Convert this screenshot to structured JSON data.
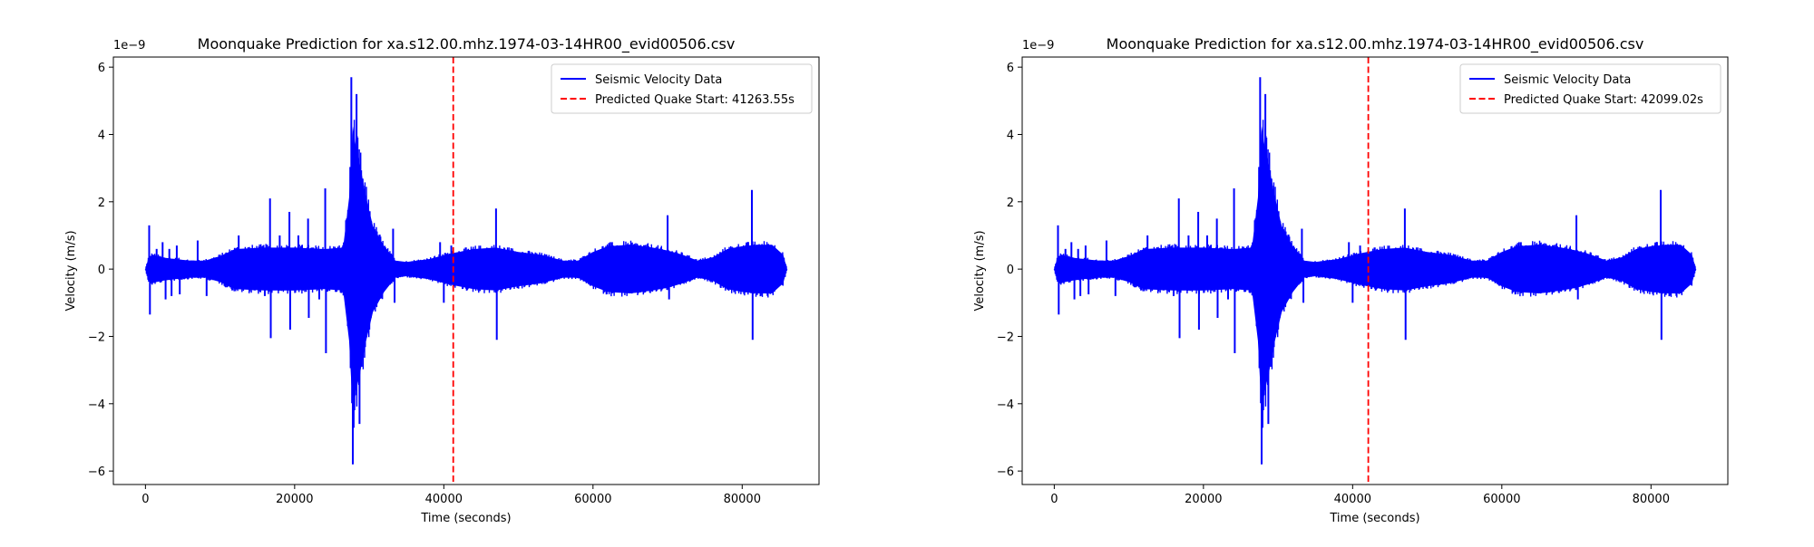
{
  "charts": [
    {
      "title": "Moonquake Prediction for xa.s12.00.mhz.1974-03-14HR00_evid00506.csv",
      "xlabel": "Time (seconds)",
      "ylabel": "Velocity (m/s)",
      "offset_label": "1e−9",
      "legend_series": "Seismic Velocity Data",
      "legend_prediction": "Predicted Quake Start: 41263.55s"
    },
    {
      "title": "Moonquake Prediction for xa.s12.00.mhz.1974-03-14HR00_evid00506.csv",
      "xlabel": "Time (seconds)",
      "ylabel": "Velocity (m/s)",
      "offset_label": "1e−9",
      "legend_series": "Seismic Velocity Data",
      "legend_prediction": "Predicted Quake Start: 42099.02s"
    }
  ],
  "chart_data": [
    {
      "type": "line",
      "title": "Moonquake Prediction for xa.s12.00.mhz.1974-03-14HR00_evid00506.csv",
      "xlabel": "Time (seconds)",
      "ylabel": "Velocity (m/s)",
      "y_scale_factor": 1e-09,
      "xlim": [
        -4300,
        90300
      ],
      "ylim": [
        -6.4,
        6.3
      ],
      "x_ticks": [
        0,
        20000,
        40000,
        60000,
        80000
      ],
      "y_ticks": [
        -6,
        -4,
        -2,
        0,
        2,
        4,
        6
      ],
      "legend_position": "upper right",
      "grid": false,
      "series": [
        {
          "name": "Seismic Velocity Data",
          "color": "#0000ff",
          "style": "solid",
          "envelope": {
            "x": [
              0,
              400,
              900,
              1500,
              2500,
              4000,
              6000,
              8000,
              10000,
              12000,
              16000,
              20000,
              24000,
              26500,
              27300,
              27800,
              28200,
              28800,
              29500,
              30500,
              32000,
              33500,
              35000,
              38000,
              41000,
              44000,
              47000,
              50000,
              53000,
              56000,
              58000,
              60000,
              62000,
              65000,
              68000,
              70000,
              72000,
              74000,
              76000,
              78000,
              80000,
              82000,
              84000,
              85500,
              86000
            ],
            "upper": [
              0,
              0.4,
              0.5,
              0.45,
              0.4,
              0.35,
              0.3,
              0.3,
              0.45,
              0.7,
              0.75,
              0.75,
              0.7,
              0.75,
              2.5,
              5.0,
              4.3,
              3.6,
              2.6,
              1.5,
              0.8,
              0.3,
              0.25,
              0.35,
              0.55,
              0.7,
              0.75,
              0.6,
              0.5,
              0.3,
              0.3,
              0.6,
              0.8,
              0.85,
              0.75,
              0.65,
              0.5,
              0.3,
              0.4,
              0.7,
              0.8,
              0.85,
              0.85,
              0.5,
              0
            ],
            "lower": [
              0,
              -0.4,
              -0.5,
              -0.45,
              -0.4,
              -0.35,
              -0.3,
              -0.3,
              -0.45,
              -0.7,
              -0.75,
              -0.75,
              -0.7,
              -0.75,
              -2.5,
              -5.0,
              -4.3,
              -3.6,
              -2.6,
              -1.5,
              -0.8,
              -0.3,
              -0.25,
              -0.35,
              -0.55,
              -0.7,
              -0.75,
              -0.6,
              -0.5,
              -0.3,
              -0.3,
              -0.6,
              -0.8,
              -0.85,
              -0.75,
              -0.65,
              -0.5,
              -0.3,
              -0.4,
              -0.7,
              -0.8,
              -0.85,
              -0.85,
              -0.5,
              0
            ]
          },
          "spikes": [
            {
              "x": 500,
              "y": 1.3
            },
            {
              "x": 600,
              "y": -1.35
            },
            {
              "x": 1500,
              "y": 0.6
            },
            {
              "x": 2300,
              "y": 0.8
            },
            {
              "x": 2700,
              "y": -0.9
            },
            {
              "x": 3200,
              "y": 0.6
            },
            {
              "x": 3500,
              "y": -0.8
            },
            {
              "x": 4200,
              "y": 0.7
            },
            {
              "x": 4600,
              "y": -0.75
            },
            {
              "x": 7000,
              "y": 0.85
            },
            {
              "x": 8200,
              "y": -0.8
            },
            {
              "x": 12500,
              "y": 1.0
            },
            {
              "x": 15800,
              "y": 0.7
            },
            {
              "x": 16000,
              "y": -0.8
            },
            {
              "x": 16700,
              "y": 2.1
            },
            {
              "x": 16800,
              "y": -2.05
            },
            {
              "x": 18000,
              "y": 1.0
            },
            {
              "x": 19300,
              "y": 1.7
            },
            {
              "x": 19400,
              "y": -1.8
            },
            {
              "x": 20500,
              "y": 1.0
            },
            {
              "x": 21800,
              "y": 1.5
            },
            {
              "x": 21900,
              "y": -1.45
            },
            {
              "x": 23300,
              "y": -0.9
            },
            {
              "x": 24100,
              "y": 2.4
            },
            {
              "x": 24200,
              "y": -2.5
            },
            {
              "x": 27600,
              "y": 5.7
            },
            {
              "x": 27800,
              "y": -5.8
            },
            {
              "x": 28300,
              "y": 5.2
            },
            {
              "x": 28700,
              "y": -4.6
            },
            {
              "x": 33200,
              "y": 1.2
            },
            {
              "x": 33400,
              "y": -1.0
            },
            {
              "x": 39500,
              "y": 0.8
            },
            {
              "x": 40000,
              "y": -1.0
            },
            {
              "x": 41000,
              "y": 0.7
            },
            {
              "x": 47000,
              "y": 1.8
            },
            {
              "x": 47100,
              "y": -2.1
            },
            {
              "x": 70000,
              "y": 1.6
            },
            {
              "x": 70200,
              "y": -0.9
            },
            {
              "x": 81300,
              "y": 2.35
            },
            {
              "x": 81400,
              "y": -2.1
            }
          ]
        },
        {
          "name": "Predicted Quake Start: 41263.55s",
          "color": "#ff0000",
          "style": "dashed",
          "vertical_line_x": 41263.55
        }
      ]
    },
    {
      "type": "line",
      "title": "Moonquake Prediction for xa.s12.00.mhz.1974-03-14HR00_evid00506.csv",
      "xlabel": "Time (seconds)",
      "ylabel": "Velocity (m/s)",
      "y_scale_factor": 1e-09,
      "xlim": [
        -4300,
        90300
      ],
      "ylim": [
        -6.4,
        6.3
      ],
      "x_ticks": [
        0,
        20000,
        40000,
        60000,
        80000
      ],
      "y_ticks": [
        -6,
        -4,
        -2,
        0,
        2,
        4,
        6
      ],
      "legend_position": "upper right",
      "grid": false,
      "series": [
        {
          "name": "Seismic Velocity Data",
          "color": "#0000ff",
          "style": "solid",
          "same_as_chart_index": 0
        },
        {
          "name": "Predicted Quake Start: 42099.02s",
          "color": "#ff0000",
          "style": "dashed",
          "vertical_line_x": 42099.02
        }
      ]
    }
  ]
}
